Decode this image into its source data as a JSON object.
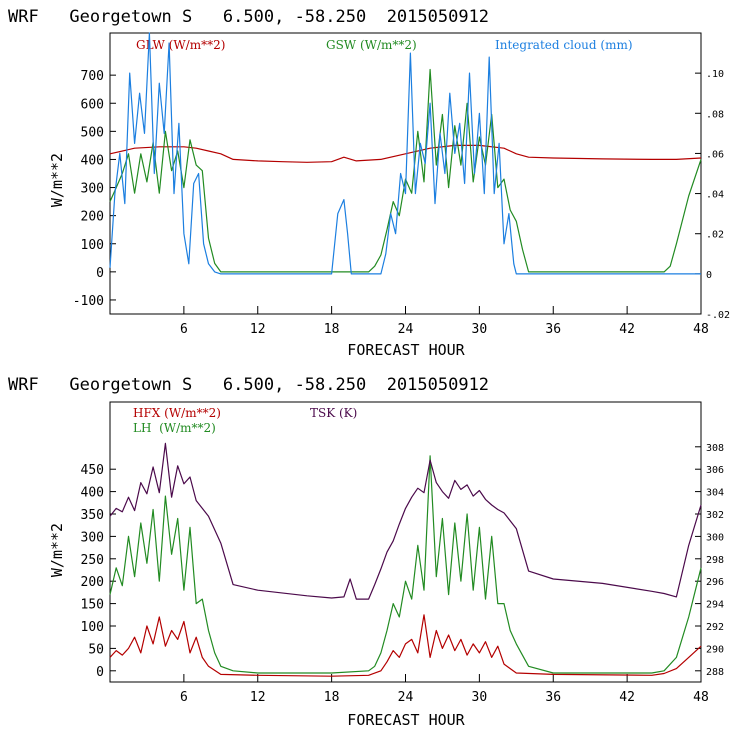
{
  "chart_data": [
    {
      "type": "line",
      "title": "WRF   Georgetown S   6.500, -58.250  2015050912",
      "xlabel": "FORECAST HOUR",
      "ylabel": "W/m**2",
      "xlim": [
        0,
        48
      ],
      "ylim": [
        -150,
        850
      ],
      "y2lim": [
        -0.02,
        0.12
      ],
      "xticks": [
        6,
        12,
        18,
        24,
        30,
        36,
        42,
        48
      ],
      "yticks": [
        -100,
        0,
        100,
        200,
        300,
        400,
        500,
        600,
        700
      ],
      "ytick_labels": [
        "-100",
        "0",
        "100",
        "200",
        "300",
        "400",
        "500",
        "600",
        "700"
      ],
      "y2ticks": [
        -0.02,
        0,
        0.02,
        0.04,
        0.06,
        0.08,
        0.1
      ],
      "y2tick_labels": [
        "-.02",
        "0",
        ".02",
        ".04",
        ".06",
        ".08",
        ".10"
      ],
      "series": [
        {
          "name": "GLW (W/m**2)",
          "color": "#b40000",
          "axis": "left",
          "x": [
            0,
            2,
            4,
            6,
            7,
            8,
            9,
            10,
            12,
            14,
            16,
            18,
            19,
            20,
            22,
            24,
            26,
            28,
            30,
            32,
            33,
            34,
            36,
            40,
            44,
            46,
            48
          ],
          "values": [
            420,
            440,
            445,
            445,
            440,
            430,
            420,
            400,
            395,
            392,
            390,
            392,
            408,
            395,
            400,
            420,
            440,
            450,
            450,
            440,
            420,
            408,
            405,
            402,
            400,
            400,
            405
          ]
        },
        {
          "name": "GSW (W/m**2)",
          "color": "#228b22",
          "axis": "left",
          "x": [
            0,
            0.5,
            1,
            1.5,
            2,
            2.5,
            3,
            3.5,
            4,
            4.5,
            5,
            5.5,
            6,
            6.5,
            7,
            7.5,
            8,
            8.5,
            9,
            12,
            18,
            21,
            21.5,
            22,
            22.5,
            23,
            23.5,
            24,
            24.5,
            25,
            25.5,
            26,
            26.5,
            27,
            27.5,
            28,
            28.5,
            29,
            29.5,
            30,
            30.5,
            31,
            31.5,
            32,
            32.5,
            33,
            33.5,
            34,
            36,
            44,
            45,
            45.5,
            46,
            47,
            48
          ],
          "values": [
            250,
            300,
            350,
            420,
            280,
            420,
            320,
            460,
            280,
            500,
            360,
            430,
            300,
            470,
            380,
            360,
            120,
            30,
            0,
            0,
            0,
            0,
            20,
            60,
            150,
            250,
            200,
            330,
            280,
            500,
            320,
            720,
            380,
            560,
            300,
            520,
            380,
            600,
            320,
            480,
            380,
            560,
            300,
            330,
            220,
            180,
            80,
            0,
            0,
            0,
            0,
            20,
            100,
            270,
            400
          ]
        },
        {
          "name": "Integrated cloud (mm)",
          "color": "#1c7fe0",
          "axis": "right",
          "x": [
            0,
            0.4,
            0.8,
            1.2,
            1.6,
            2,
            2.4,
            2.8,
            3.2,
            3.6,
            4,
            4.4,
            4.8,
            5.2,
            5.6,
            6,
            6.4,
            6.8,
            7.2,
            7.6,
            8,
            8.5,
            9,
            12,
            18,
            18.5,
            19,
            19.3,
            19.6,
            20,
            22,
            22.4,
            22.8,
            23.2,
            23.6,
            24,
            24.4,
            24.8,
            25.2,
            25.6,
            26,
            26.4,
            26.8,
            27.2,
            27.6,
            28,
            28.4,
            28.8,
            29.2,
            29.6,
            30,
            30.4,
            30.8,
            31.2,
            31.6,
            32,
            32.4,
            32.8,
            33,
            36,
            48
          ],
          "values": [
            0.003,
            0.04,
            0.06,
            0.035,
            0.1,
            0.065,
            0.09,
            0.07,
            0.12,
            0.05,
            0.095,
            0.07,
            0.115,
            0.04,
            0.075,
            0.02,
            0.005,
            0.045,
            0.05,
            0.015,
            0.005,
            0.001,
            0,
            0,
            0,
            0.03,
            0.037,
            0.02,
            0.0,
            0,
            0,
            0.01,
            0.03,
            0.02,
            0.05,
            0.04,
            0.11,
            0.04,
            0.065,
            0.055,
            0.085,
            0.035,
            0.07,
            0.05,
            0.09,
            0.06,
            0.075,
            0.045,
            0.1,
            0.05,
            0.08,
            0.04,
            0.108,
            0.04,
            0.065,
            0.015,
            0.03,
            0.005,
            0,
            0,
            0
          ]
        }
      ]
    },
    {
      "type": "line",
      "title": "WRF   Georgetown S   6.500, -58.250  2015050912",
      "xlabel": "FORECAST HOUR",
      "ylabel": "W/m**2",
      "xlim": [
        0,
        48
      ],
      "ylim": [
        -25,
        600
      ],
      "y2lim": [
        287,
        312
      ],
      "xticks": [
        6,
        12,
        18,
        24,
        30,
        36,
        42,
        48
      ],
      "yticks": [
        0,
        50,
        100,
        150,
        200,
        250,
        300,
        350,
        400,
        450
      ],
      "ytick_labels": [
        "0",
        "50",
        "100",
        "150",
        "200",
        "250",
        "300",
        "350",
        "400",
        "450"
      ],
      "y2ticks": [
        288,
        290,
        292,
        294,
        296,
        298,
        300,
        302,
        304,
        306,
        308
      ],
      "y2tick_labels": [
        "288",
        "290",
        "292",
        "294",
        "296",
        "298",
        "300",
        "302",
        "304",
        "306",
        "308"
      ],
      "series": [
        {
          "name": "HFX (W/m**2)",
          "color": "#b40000",
          "axis": "left",
          "x": [
            0,
            0.5,
            1,
            1.5,
            2,
            2.5,
            3,
            3.5,
            4,
            4.5,
            5,
            5.5,
            6,
            6.5,
            7,
            7.5,
            8,
            9,
            12,
            18,
            21,
            22,
            22.5,
            23,
            23.5,
            24,
            24.5,
            25,
            25.5,
            26,
            26.5,
            27,
            27.5,
            28,
            28.5,
            29,
            29.5,
            30,
            30.5,
            31,
            31.5,
            32,
            32.5,
            33,
            36,
            44,
            45,
            46,
            47,
            48
          ],
          "values": [
            30,
            45,
            35,
            50,
            75,
            40,
            100,
            60,
            120,
            55,
            90,
            70,
            110,
            40,
            75,
            30,
            10,
            -8,
            -10,
            -12,
            -10,
            0,
            20,
            45,
            30,
            60,
            70,
            40,
            125,
            30,
            90,
            50,
            80,
            45,
            70,
            35,
            60,
            40,
            65,
            30,
            55,
            15,
            5,
            -5,
            -8,
            -10,
            -6,
            5,
            30,
            55
          ]
        },
        {
          "name": "LH  (W/m**2)",
          "color": "#228b22",
          "axis": "left",
          "x": [
            0,
            0.5,
            1,
            1.5,
            2,
            2.5,
            3,
            3.5,
            4,
            4.5,
            5,
            5.5,
            6,
            6.5,
            7,
            7.5,
            8,
            8.5,
            9,
            10,
            12,
            18,
            21,
            21.5,
            22,
            22.5,
            23,
            23.5,
            24,
            24.5,
            25,
            25.5,
            26,
            26.5,
            27,
            27.5,
            28,
            28.5,
            29,
            29.5,
            30,
            30.5,
            31,
            31.5,
            32,
            32.5,
            33,
            34,
            36,
            44,
            45,
            46,
            47,
            48
          ],
          "values": [
            170,
            230,
            190,
            300,
            210,
            330,
            240,
            360,
            200,
            390,
            260,
            340,
            180,
            320,
            150,
            160,
            90,
            40,
            10,
            0,
            -5,
            -5,
            0,
            10,
            40,
            90,
            150,
            120,
            200,
            160,
            280,
            180,
            480,
            210,
            340,
            170,
            330,
            200,
            350,
            180,
            320,
            160,
            300,
            150,
            150,
            90,
            60,
            10,
            -5,
            -5,
            0,
            30,
            120,
            230
          ]
        },
        {
          "name": "TSK (K)",
          "color": "#4b0a4b",
          "axis": "right",
          "x": [
            0,
            0.5,
            1,
            1.5,
            2,
            2.5,
            3,
            3.5,
            4,
            4.5,
            5,
            5.5,
            6,
            6.5,
            7,
            8,
            9,
            10,
            12,
            16,
            18,
            19,
            19.5,
            20,
            21,
            21.5,
            22,
            22.5,
            23,
            23.5,
            24,
            24.5,
            25,
            25.5,
            26,
            26.5,
            27,
            27.5,
            28,
            28.5,
            29,
            29.5,
            30,
            30.5,
            31,
            31.5,
            32,
            33,
            34,
            36,
            40,
            44,
            45,
            46,
            47,
            48
          ],
          "values": [
            301.8,
            302.5,
            302.2,
            303.5,
            302.3,
            304.8,
            303.8,
            306.2,
            303.9,
            308.3,
            303.5,
            306.3,
            304.7,
            305.3,
            303.2,
            301.8,
            299.4,
            295.7,
            295.2,
            294.7,
            294.5,
            294.6,
            296.2,
            294.4,
            294.4,
            295.7,
            297.1,
            298.6,
            299.6,
            301.1,
            302.5,
            303.5,
            304.3,
            303.9,
            306.8,
            304.8,
            304.0,
            303.4,
            305.0,
            304.2,
            304.6,
            303.6,
            304.1,
            303.3,
            302.8,
            302.4,
            302.1,
            300.7,
            296.9,
            296.2,
            295.8,
            295.1,
            294.9,
            294.6,
            299.2,
            302.8
          ]
        }
      ]
    }
  ]
}
